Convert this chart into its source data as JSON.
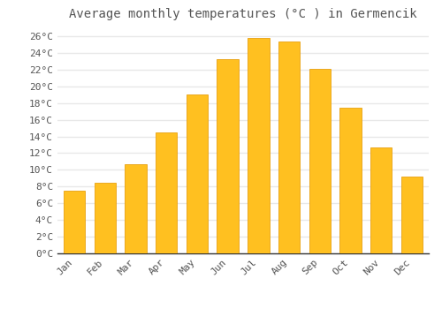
{
  "title": "Average monthly temperatures (°C ) in Germencik",
  "months": [
    "Jan",
    "Feb",
    "Mar",
    "Apr",
    "May",
    "Jun",
    "Jul",
    "Aug",
    "Sep",
    "Oct",
    "Nov",
    "Dec"
  ],
  "temperatures": [
    7.5,
    8.5,
    10.7,
    14.5,
    19.0,
    23.3,
    25.8,
    25.4,
    22.1,
    17.4,
    12.7,
    9.2
  ],
  "bar_color": "#FFC020",
  "bar_edge_color": "#E8A010",
  "background_color": "#FFFFFF",
  "grid_color": "#E8E8E8",
  "text_color": "#555555",
  "ylim": [
    0,
    27
  ],
  "ytick_max": 26,
  "ytick_step": 2,
  "title_fontsize": 10,
  "tick_fontsize": 8,
  "font_family": "monospace"
}
